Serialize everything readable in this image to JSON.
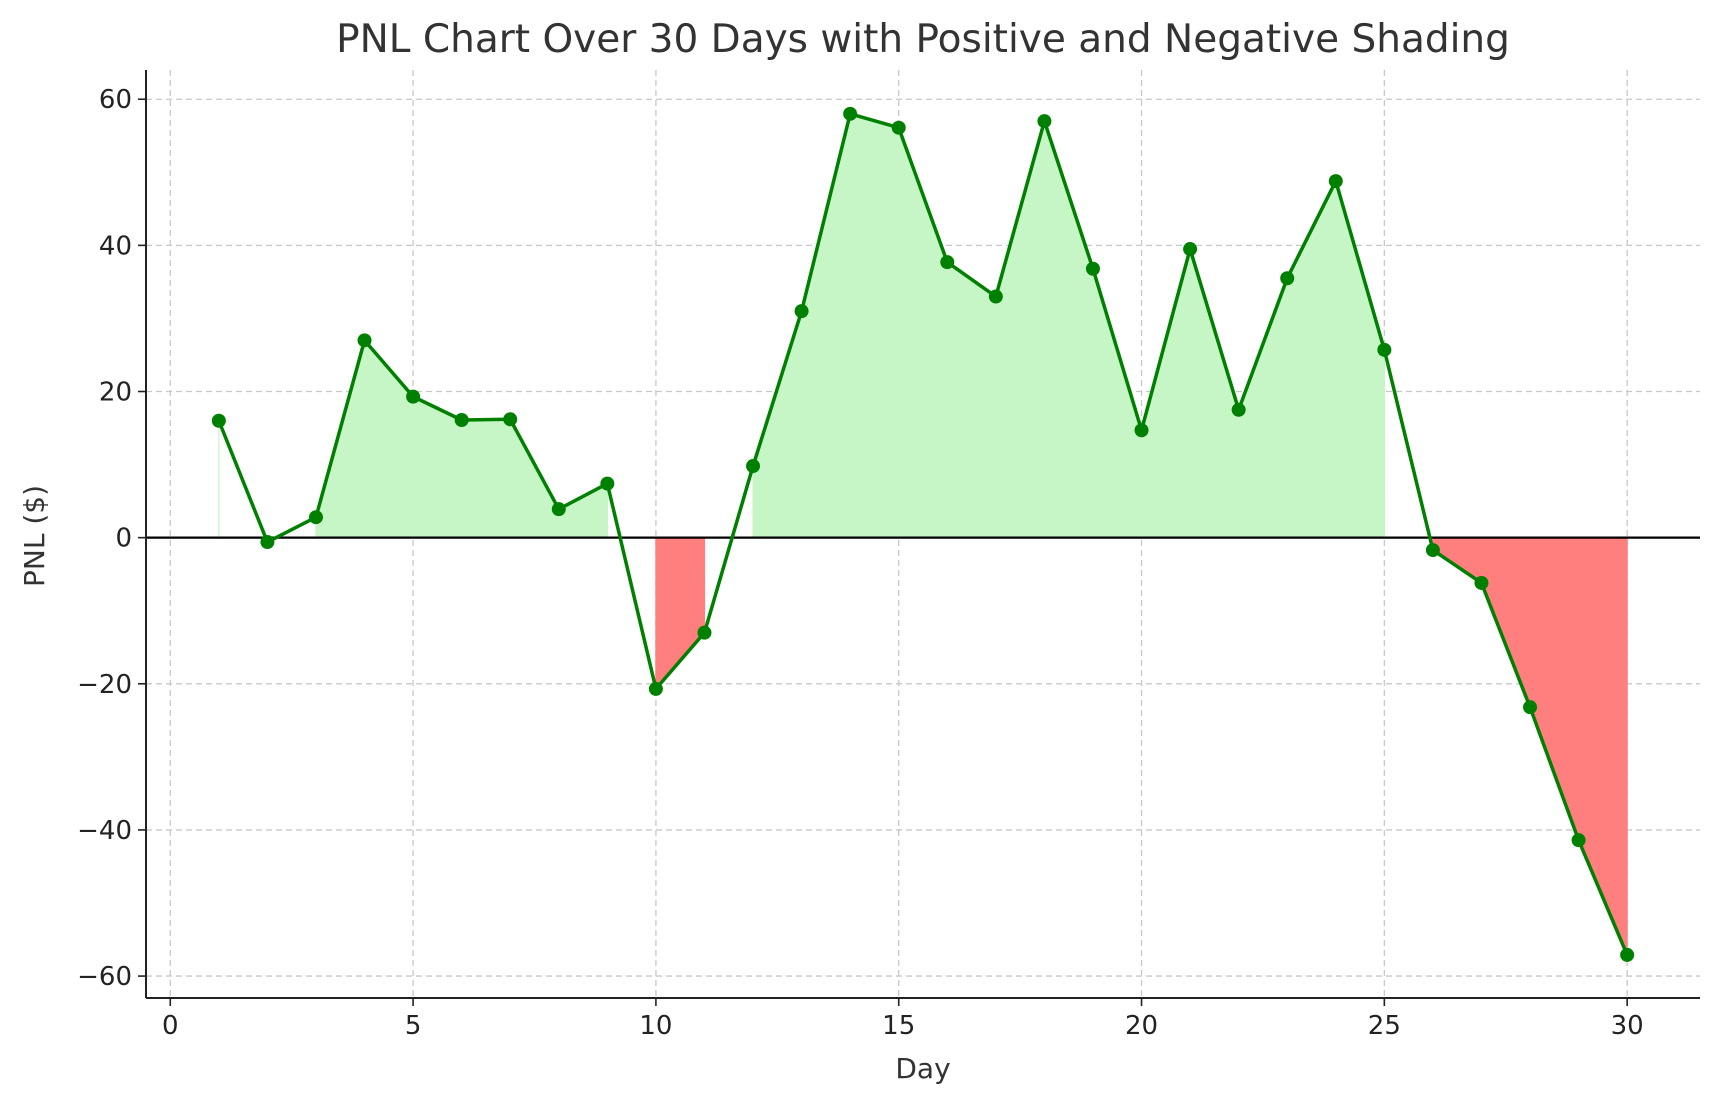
{
  "chart_data": {
    "type": "line",
    "title": "PNL Chart Over 30 Days with Positive and Negative Shading",
    "xlabel": "Day",
    "ylabel": "PNL ($)",
    "xlim": [
      -0.5,
      31.5
    ],
    "ylim": [
      -63,
      64
    ],
    "xticks": [
      0,
      5,
      10,
      15,
      20,
      25,
      30
    ],
    "yticks": [
      -60,
      -40,
      -20,
      0,
      20,
      40,
      60
    ],
    "ytick_labels": [
      "−60",
      "−40",
      "−20",
      "0",
      "20",
      "40",
      "60"
    ],
    "grid": true,
    "x": [
      1,
      2,
      3,
      4,
      5,
      6,
      7,
      8,
      9,
      10,
      11,
      12,
      13,
      14,
      15,
      16,
      17,
      18,
      19,
      20,
      21,
      22,
      23,
      24,
      25,
      26,
      27,
      28,
      29,
      30
    ],
    "series": [
      {
        "values": [
          16.0,
          -0.6,
          2.8,
          27.0,
          19.3,
          16.1,
          16.2,
          3.9,
          7.4,
          -20.7,
          -13.0,
          9.8,
          31.0,
          58.0,
          56.1,
          37.7,
          33.0,
          57.0,
          36.8,
          14.7,
          39.5,
          17.5,
          35.5,
          48.8,
          25.7,
          -1.7,
          -6.2,
          -23.2,
          -41.4,
          -57.1
        ]
      }
    ],
    "colors": {
      "line": "#008000",
      "marker": "#008000",
      "positive_fill": "#c6f5c6",
      "negative_fill": "#ff7f7f",
      "zero_line": "#000000"
    }
  }
}
